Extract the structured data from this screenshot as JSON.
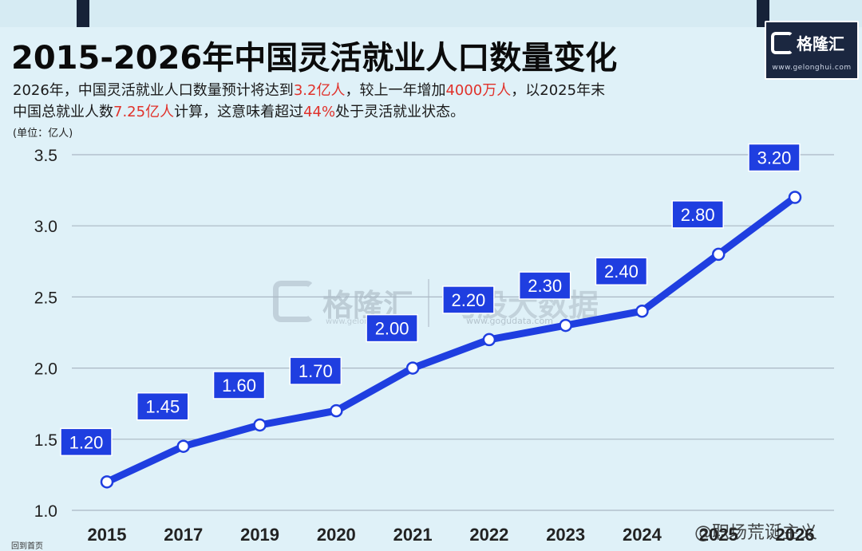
{
  "header": {
    "title": "2015-2026年中国灵活就业人口数量变化",
    "subtitle_line1": [
      {
        "text": "2026年，中国灵活就业人口数量预计将达到",
        "highlight": false
      },
      {
        "text": "3.2亿人",
        "highlight": true
      },
      {
        "text": "，较上一年增加",
        "highlight": false
      },
      {
        "text": "4000万人",
        "highlight": true
      },
      {
        "text": "，以2025年末",
        "highlight": false
      }
    ],
    "subtitle_line2": [
      {
        "text": "中国总就业人数",
        "highlight": false
      },
      {
        "text": "7.25亿人",
        "highlight": true
      },
      {
        "text": "计算，这意味着超过",
        "highlight": false
      },
      {
        "text": "44%",
        "highlight": true
      },
      {
        "text": "处于灵活就业状态。",
        "highlight": false
      }
    ],
    "unit": "(单位：亿人)"
  },
  "logo": {
    "name": "格隆汇",
    "url": "www.gelonghui.com"
  },
  "watermark": {
    "name": "格隆汇",
    "url": "www.gelonghui.com",
    "name2": "勾股大数据",
    "url2": "www.gogudata.com"
  },
  "weibo_mark": "@职场荒诞主义",
  "bottom_text": "回到首页",
  "colors": {
    "line": "#1f3ee0",
    "label_bg": "#1f3ee0",
    "grid": "#aab8c4",
    "highlight": "#e0322b"
  },
  "chart_data": {
    "type": "line",
    "categories": [
      "2015",
      "2017",
      "2019",
      "2020",
      "2021",
      "2022",
      "2023",
      "2024",
      "2025",
      "2026"
    ],
    "series": [
      {
        "values": [
          1.2,
          1.45,
          1.6,
          1.7,
          2.0,
          2.2,
          2.3,
          2.4,
          2.8,
          3.2
        ],
        "labels": [
          "1.20",
          "1.45",
          "1.60",
          "1.70",
          "2.00",
          "2.20",
          "2.30",
          "2.40",
          "2.80",
          "3.20"
        ]
      }
    ],
    "y_ticks": [
      "3.5",
      "3.0",
      "2.5",
      "2.0",
      "1.5",
      "1.0"
    ],
    "ylim": [
      1.0,
      3.5
    ],
    "grid": true,
    "legend": "none"
  }
}
